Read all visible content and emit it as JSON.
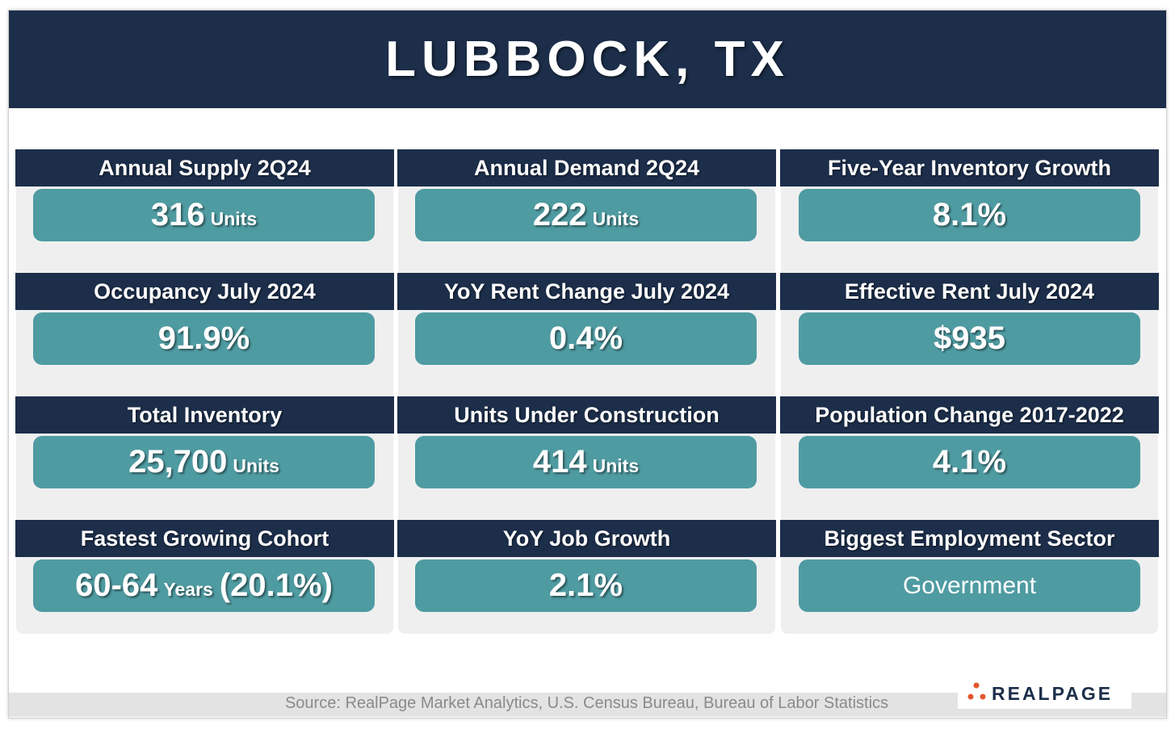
{
  "header": {
    "title": "LUBBOCK, TX"
  },
  "cards": [
    {
      "label": "Annual Supply 2Q24",
      "value": "316",
      "unit": "Units"
    },
    {
      "label": "Annual Demand 2Q24",
      "value": "222",
      "unit": "Units"
    },
    {
      "label": "Five-Year Inventory Growth",
      "value": "8.1%"
    },
    {
      "label": "Occupancy July 2024",
      "value": "91.9%"
    },
    {
      "label": "YoY Rent Change July 2024",
      "value": "0.4%"
    },
    {
      "label": "Effective Rent July 2024",
      "value": "$935"
    },
    {
      "label": "Total Inventory",
      "value": "25,700",
      "unit": "Units"
    },
    {
      "label": "Units Under Construction",
      "value": "414",
      "unit": "Units"
    },
    {
      "label": "Population Change 2017-2022",
      "value": "4.1%"
    },
    {
      "label": "Fastest Growing Cohort",
      "value": "60-64",
      "unit": "Years",
      "extra": "(20.1%)"
    },
    {
      "label": "YoY Job Growth",
      "value": "2.1%"
    },
    {
      "label": "Biggest Employment Sector",
      "text": "Government"
    }
  ],
  "footer": {
    "source": "Source: RealPage Market Analytics, U.S. Census Bureau, Bureau of Labor Statistics",
    "logo": "REALPAGE"
  }
}
